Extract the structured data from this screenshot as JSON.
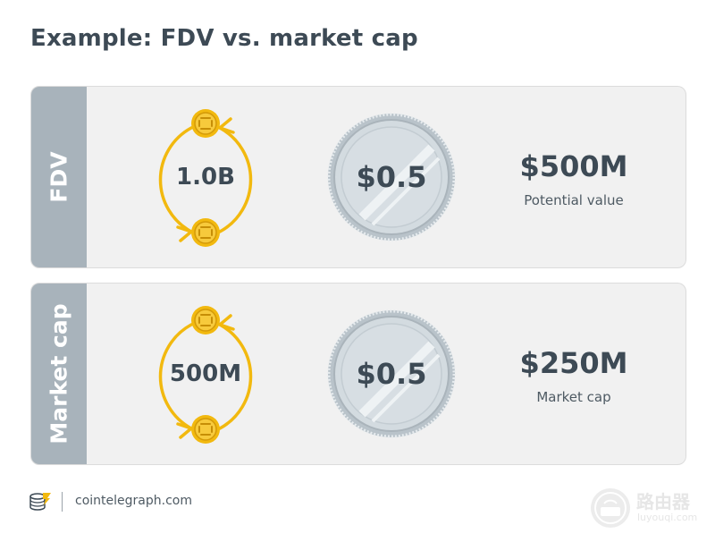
{
  "title": "Example: FDV vs. market cap",
  "panels": [
    {
      "side_label": "FDV",
      "supply": "1.0B",
      "price": "$0.5",
      "amount": "$500M",
      "caption": "Potential value"
    },
    {
      "side_label": "Market cap",
      "supply": "500M",
      "price": "$0.5",
      "amount": "$250M",
      "caption": "Market cap"
    }
  ],
  "footer": {
    "site": "cointelegraph.com"
  },
  "watermark": {
    "name": "路由器",
    "site": "luyouqi.com"
  },
  "colors": {
    "text": "#3d4a55",
    "panel": "#f1f1f1",
    "side": "#a8b3bb",
    "coin_gold": "#f2b90f",
    "arrow": "#f2b90f",
    "silver": "#cfd6db"
  },
  "icons": [
    "coin-icon",
    "cycle-arrows-icon",
    "silver-coin-icon",
    "cointelegraph-logo-icon",
    "router-watermark-icon"
  ]
}
